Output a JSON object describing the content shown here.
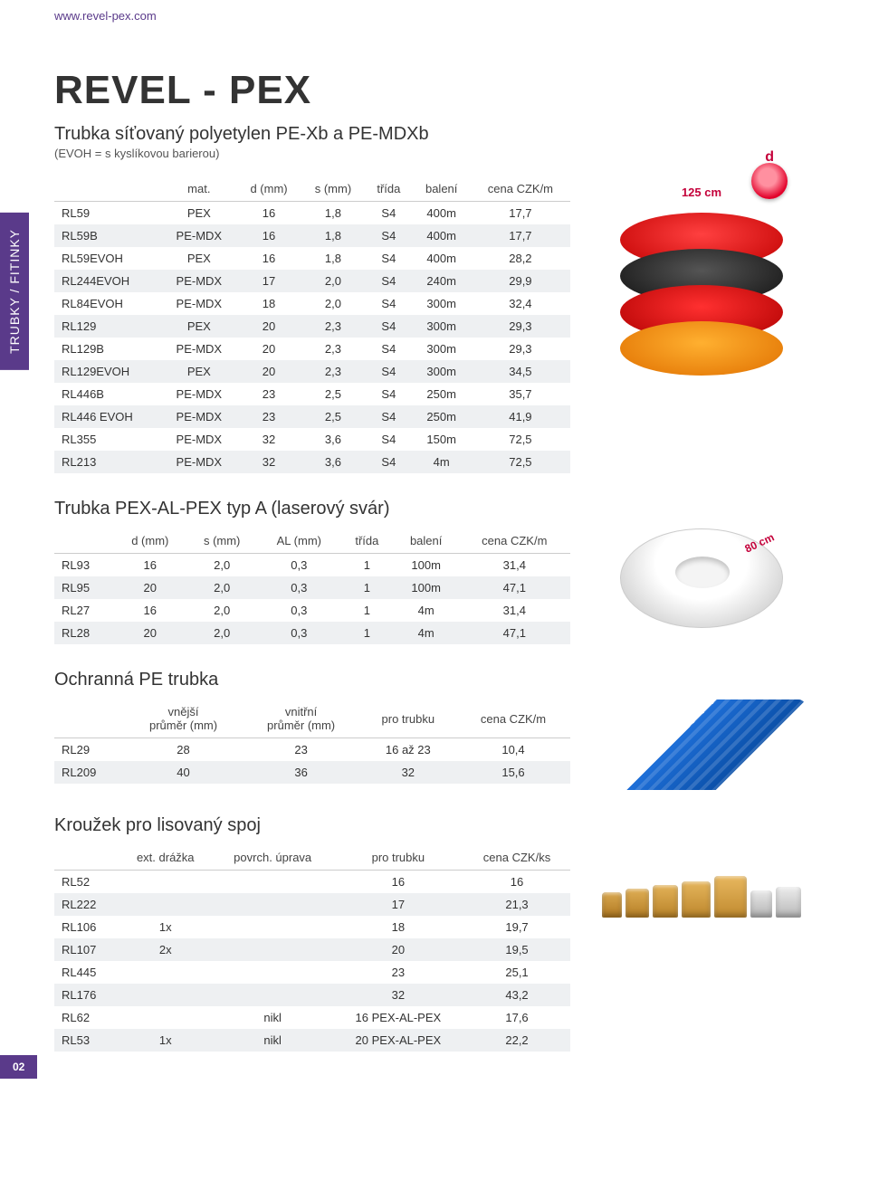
{
  "url": "www.revel-pex.com",
  "sidebar": "TRUBKY / FITINKY",
  "title": "REVEL - PEX",
  "subtitle": "Trubka síťovaný polyetylen PE-Xb a PE-MDXb",
  "subnote": "(EVOH = s kyslíkovou barierou)",
  "dim_d": "d",
  "dim_w": "125 cm",
  "dim_80": "80 cm",
  "pagenum": "02",
  "t1": {
    "headers": [
      "",
      "mat.",
      "d (mm)",
      "s (mm)",
      "třída",
      "balení",
      "cena CZK/m"
    ],
    "rows": [
      [
        "RL59",
        "PEX",
        "16",
        "1,8",
        "S4",
        "400m",
        "17,7"
      ],
      [
        "RL59B",
        "PE-MDX",
        "16",
        "1,8",
        "S4",
        "400m",
        "17,7"
      ],
      [
        "RL59EVOH",
        "PEX",
        "16",
        "1,8",
        "S4",
        "400m",
        "28,2"
      ],
      [
        "RL244EVOH",
        "PE-MDX",
        "17",
        "2,0",
        "S4",
        "240m",
        "29,9"
      ],
      [
        "RL84EVOH",
        "PE-MDX",
        "18",
        "2,0",
        "S4",
        "300m",
        "32,4"
      ],
      [
        "RL129",
        "PEX",
        "20",
        "2,3",
        "S4",
        "300m",
        "29,3"
      ],
      [
        "RL129B",
        "PE-MDX",
        "20",
        "2,3",
        "S4",
        "300m",
        "29,3"
      ],
      [
        "RL129EVOH",
        "PEX",
        "20",
        "2,3",
        "S4",
        "300m",
        "34,5"
      ],
      [
        "RL446B",
        "PE-MDX",
        "23",
        "2,5",
        "S4",
        "250m",
        "35,7"
      ],
      [
        "RL446 EVOH",
        "PE-MDX",
        "23",
        "2,5",
        "S4",
        "250m",
        "41,9"
      ],
      [
        "RL355",
        "PE-MDX",
        "32",
        "3,6",
        "S4",
        "150m",
        "72,5"
      ],
      [
        "RL213",
        "PE-MDX",
        "32",
        "3,6",
        "S4",
        "4m",
        "72,5"
      ]
    ]
  },
  "t2": {
    "title": "Trubka PEX-AL-PEX typ A (laserový svár)",
    "headers": [
      "",
      "d (mm)",
      "s (mm)",
      "AL (mm)",
      "třída",
      "balení",
      "cena CZK/m"
    ],
    "rows": [
      [
        "RL93",
        "16",
        "2,0",
        "0,3",
        "1",
        "100m",
        "31,4"
      ],
      [
        "RL95",
        "20",
        "2,0",
        "0,3",
        "1",
        "100m",
        "47,1"
      ],
      [
        "RL27",
        "16",
        "2,0",
        "0,3",
        "1",
        "4m",
        "31,4"
      ],
      [
        "RL28",
        "20",
        "2,0",
        "0,3",
        "1",
        "4m",
        "47,1"
      ]
    ]
  },
  "t3": {
    "title": "Ochranná PE trubka",
    "headers": [
      "",
      "vnější\nprůměr (mm)",
      "vnitřní\nprůměr (mm)",
      "pro trubku",
      "cena CZK/m"
    ],
    "rows": [
      [
        "RL29",
        "28",
        "23",
        "16 až 23",
        "10,4"
      ],
      [
        "RL209",
        "40",
        "36",
        "32",
        "15,6"
      ]
    ]
  },
  "t4": {
    "title": "Kroužek pro lisovaný spoj",
    "headers": [
      "",
      "ext. drážka",
      "povrch. úprava",
      "pro trubku",
      "cena CZK/ks"
    ],
    "rows": [
      [
        "RL52",
        "",
        "",
        "16",
        "16"
      ],
      [
        "RL222",
        "",
        "",
        "17",
        "21,3"
      ],
      [
        "RL106",
        "1x",
        "",
        "18",
        "19,7"
      ],
      [
        "RL107",
        "2x",
        "",
        "20",
        "19,5"
      ],
      [
        "RL445",
        "",
        "",
        "23",
        "25,1"
      ],
      [
        "RL176",
        "",
        "",
        "32",
        "43,2"
      ],
      [
        "RL62",
        "",
        "nikl",
        "16 PEX-AL-PEX",
        "17,6"
      ],
      [
        "RL53",
        "1x",
        "nikl",
        "20 PEX-AL-PEX",
        "22,2"
      ]
    ]
  }
}
